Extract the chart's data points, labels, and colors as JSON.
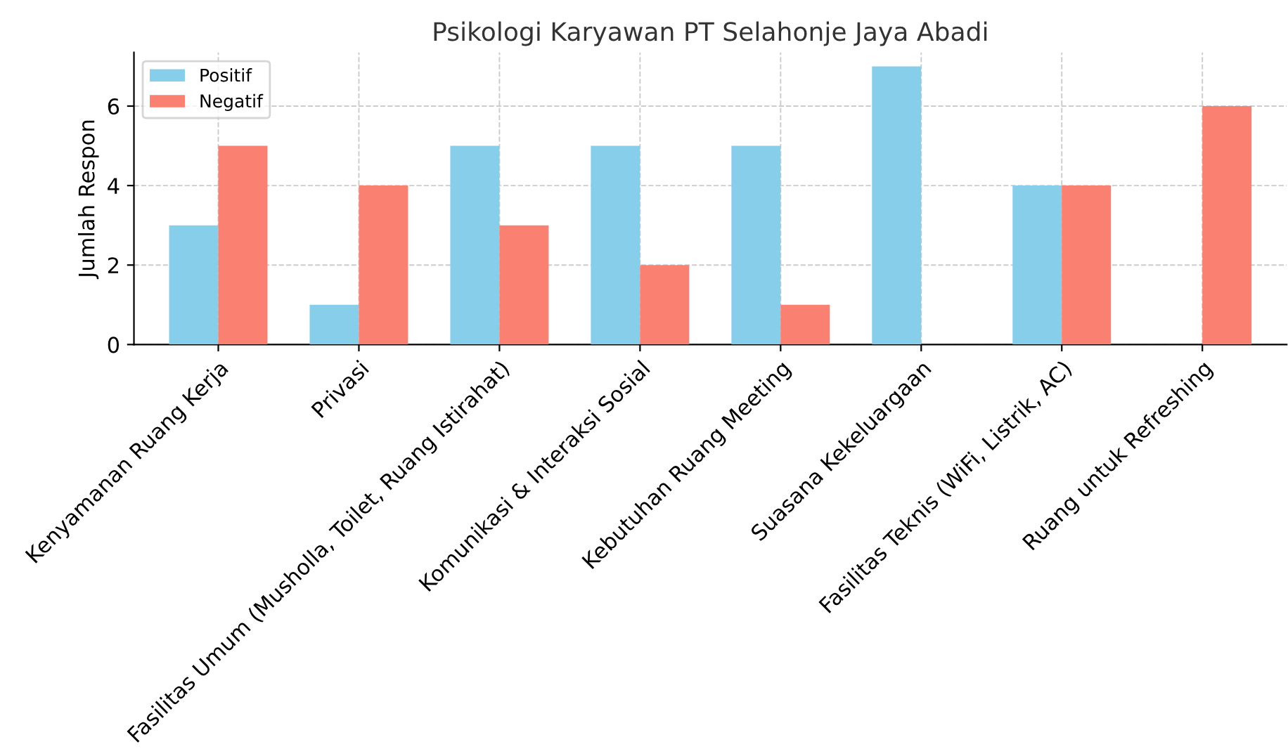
{
  "chart_data": {
    "type": "bar",
    "title": "Psikologi Karyawan PT Selahonje Jaya Abadi",
    "ylabel": "Jumlah Respon",
    "categories": [
      "Kenyamanan Ruang Kerja",
      "Privasi",
      "Fasilitas Umum (Musholla, Toilet, Ruang Istirahat)",
      "Komunikasi & Interaksi Sosial",
      "Kebutuhan Ruang Meeting",
      "Suasana Kekeluargaan",
      "Fasilitas Teknis (WiFi, Listrik, AC)",
      "Ruang untuk Refreshing"
    ],
    "series": [
      {
        "name": "Positif",
        "color": "#87ceeb",
        "values": [
          3,
          1,
          5,
          5,
          5,
          7,
          4,
          0
        ]
      },
      {
        "name": "Negatif",
        "color": "#fa8072",
        "values": [
          5,
          4,
          3,
          2,
          1,
          0,
          4,
          6
        ]
      }
    ],
    "ylim": [
      0,
      7.35
    ],
    "yticks": [
      0,
      2,
      4,
      6
    ],
    "grid": true,
    "legend": "top left"
  }
}
